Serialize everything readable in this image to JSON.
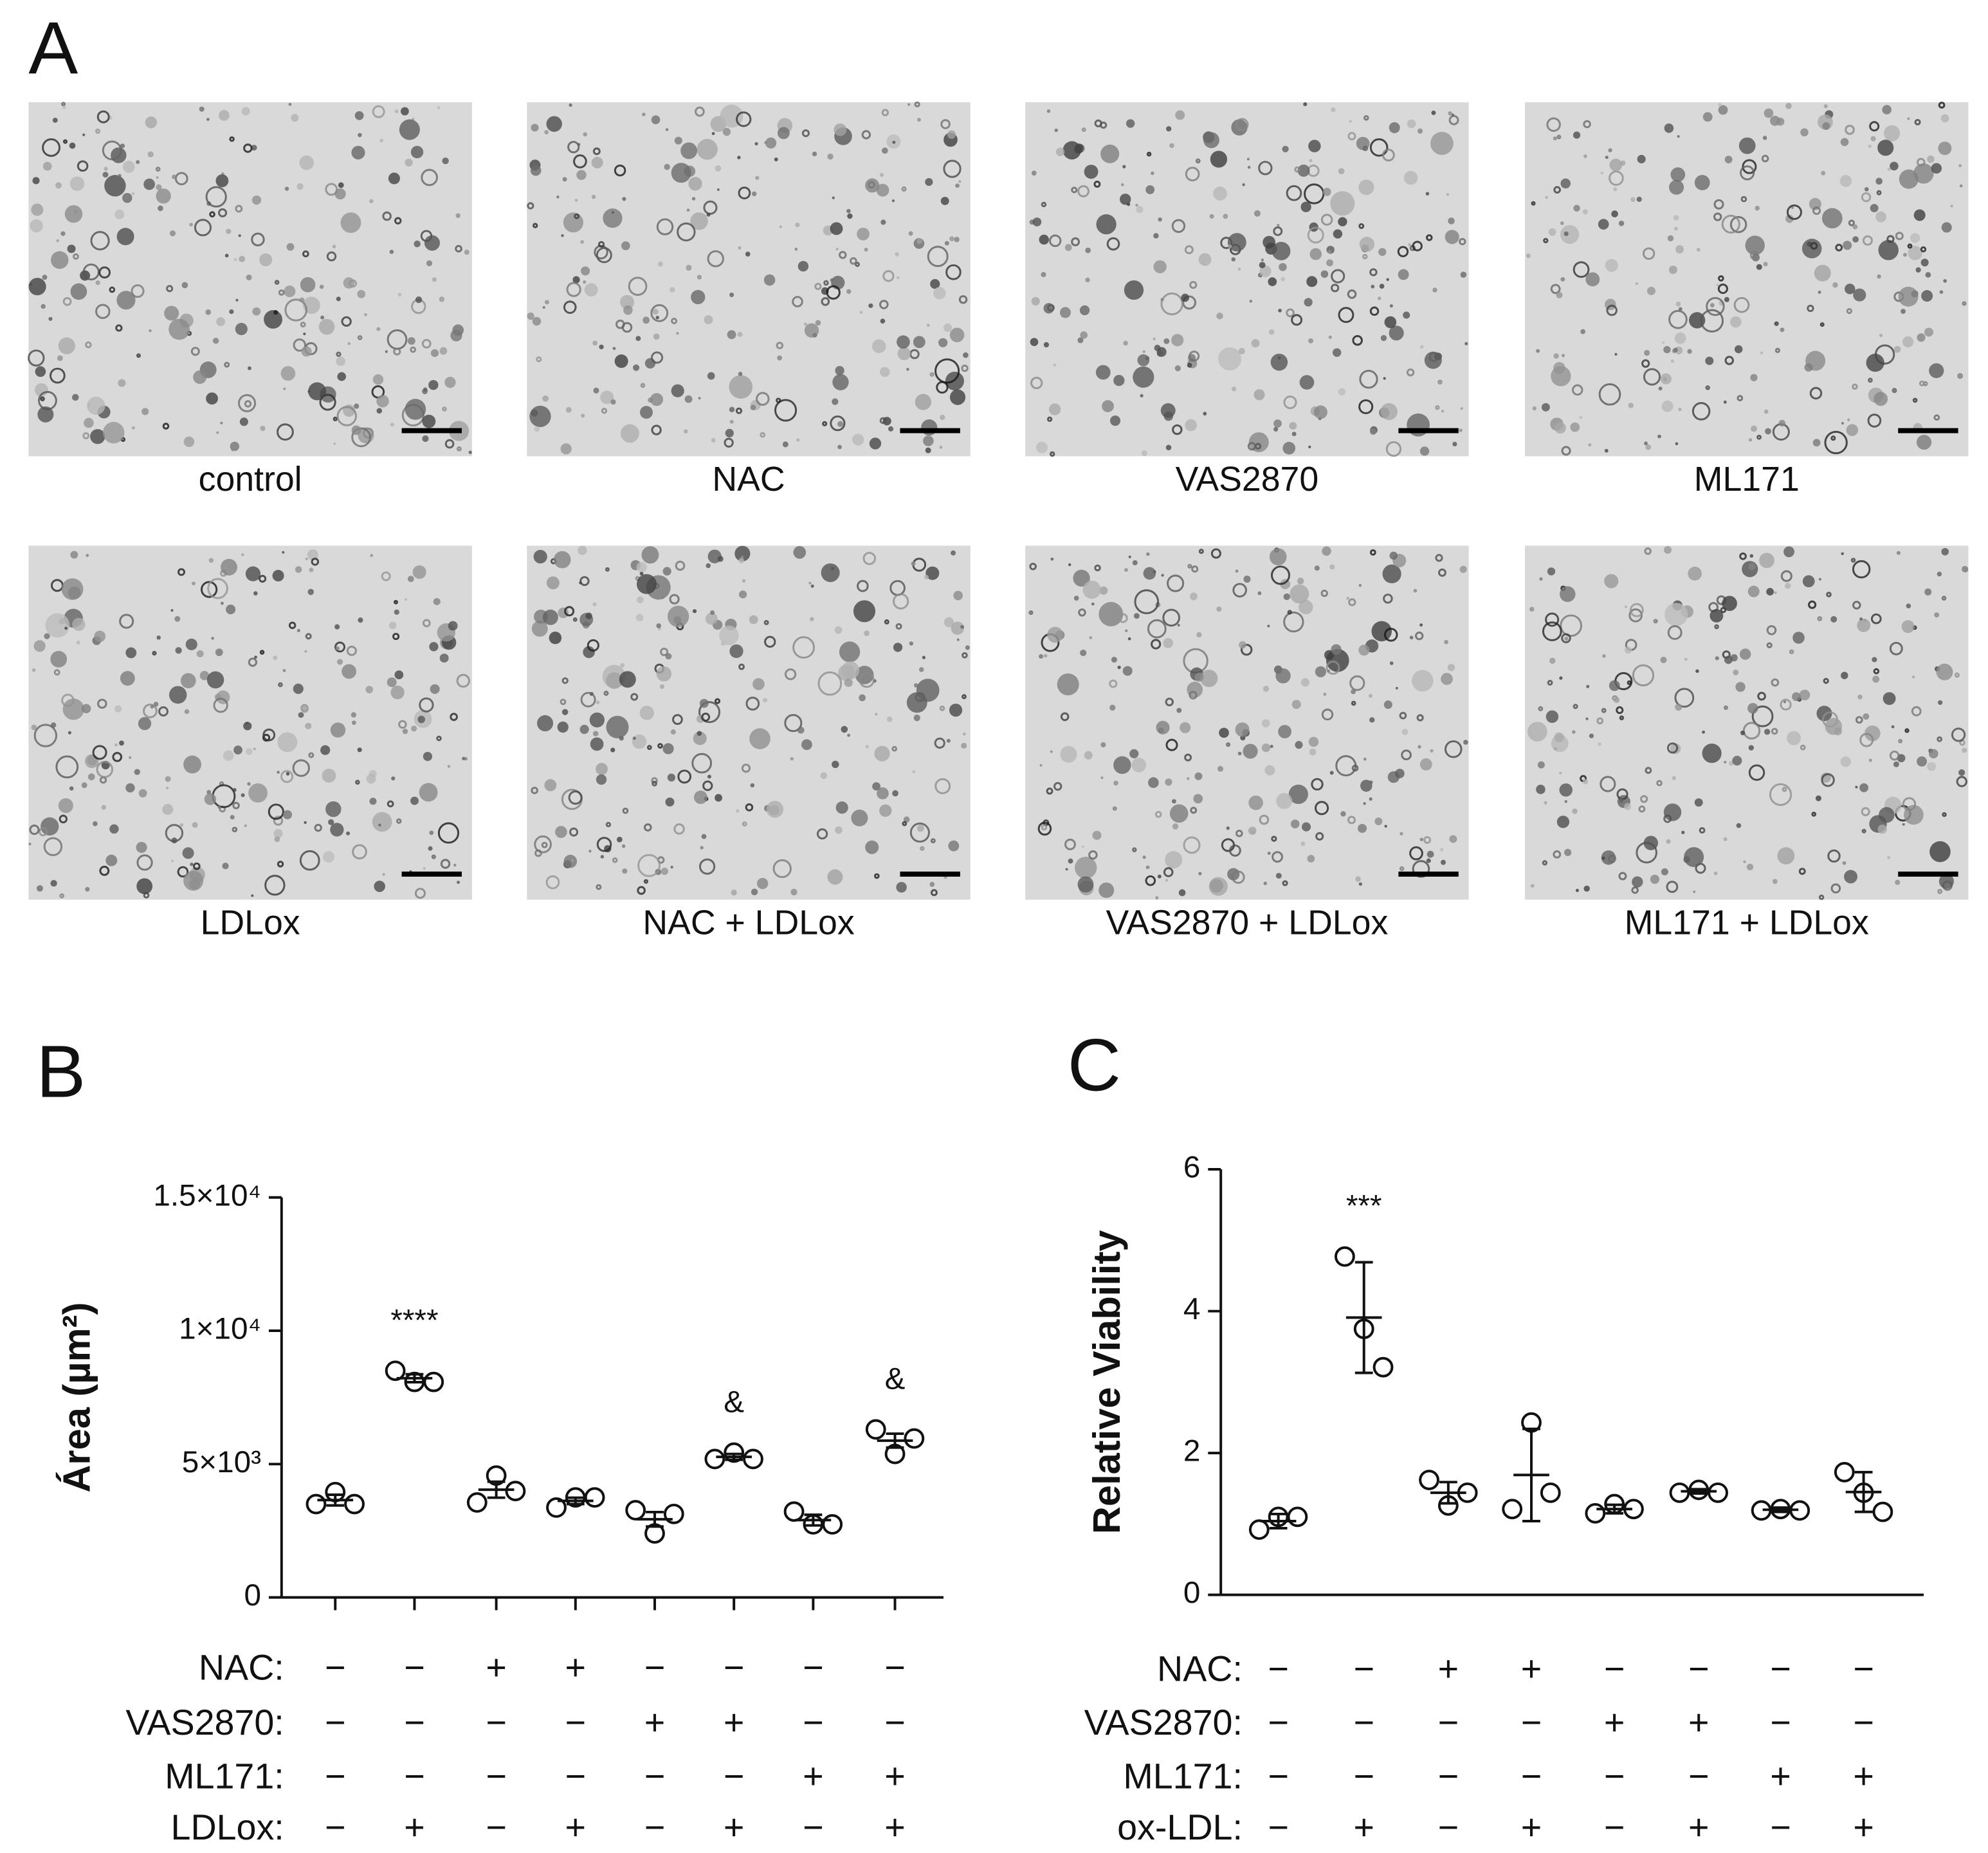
{
  "panel_a": {
    "label": "A",
    "images": [
      "control",
      "NAC",
      "VAS2870",
      "ML171",
      "LDLox",
      "NAC + LDLox",
      "VAS2870 + LDLox",
      "ML171 + LDLox"
    ]
  },
  "chart_data": [
    {
      "type": "scatter",
      "panel": "B",
      "y_label": "Área (µm²)",
      "ylim": [
        0,
        15000
      ],
      "yticks": [
        0,
        {
          "value": 5000,
          "label": "5×10³"
        },
        {
          "value": 10000,
          "label": "1×10⁴"
        },
        {
          "value": 15000,
          "label": "1.5×10⁴"
        }
      ],
      "color": "#111111",
      "groups": [
        [
          3500,
          3950,
          3500
        ],
        [
          8500,
          8080,
          8080
        ],
        [
          3560,
          4570,
          3990
        ],
        [
          3370,
          3750,
          3750
        ],
        [
          3270,
          2400,
          3130
        ],
        [
          5190,
          5430,
          5190
        ],
        [
          3220,
          2740,
          2740
        ],
        [
          6300,
          5380,
          5960
        ]
      ],
      "means": [
        3650,
        8220,
        4040,
        3620,
        2930,
        5270,
        2900,
        5880
      ],
      "errors": [
        200,
        150,
        300,
        120,
        270,
        110,
        200,
        260
      ],
      "annotations": [
        null,
        "****",
        null,
        null,
        null,
        "&",
        null,
        "&"
      ],
      "x_ticks": true,
      "treatments": [
        {
          "name": "NAC:",
          "signs": [
            "−",
            "−",
            "+",
            "+",
            "−",
            "−",
            "−",
            "−"
          ]
        },
        {
          "name": "VAS2870:",
          "signs": [
            "−",
            "−",
            "−",
            "−",
            "+",
            "+",
            "−",
            "−"
          ]
        },
        {
          "name": "ML171:",
          "signs": [
            "−",
            "−",
            "−",
            "−",
            "−",
            "−",
            "+",
            "+"
          ]
        },
        {
          "name": "LDLox:",
          "signs": [
            "−",
            "+",
            "−",
            "+",
            "−",
            "+",
            "−",
            "+"
          ]
        }
      ]
    },
    {
      "type": "scatter",
      "panel": "C",
      "y_label": "Relative Viability",
      "ylim": [
        0,
        6
      ],
      "yticks": [
        0,
        2,
        4,
        6
      ],
      "color": "#111111",
      "groups": [
        [
          0.92,
          1.1,
          1.1
        ],
        [
          4.77,
          3.75,
          3.21
        ],
        [
          1.62,
          1.26,
          1.44
        ],
        [
          1.21,
          2.43,
          1.44
        ],
        [
          1.15,
          1.28,
          1.21
        ],
        [
          1.44,
          1.48,
          1.44
        ],
        [
          1.19,
          1.21,
          1.19
        ],
        [
          1.73,
          1.44,
          1.17
        ]
      ],
      "means": [
        1.04,
        3.91,
        1.44,
        1.69,
        1.21,
        1.46,
        1.2,
        1.45
      ],
      "errors": [
        0.1,
        0.78,
        0.15,
        0.65,
        0.06,
        0.03,
        0.03,
        0.28
      ],
      "annotations": [
        null,
        "***",
        null,
        null,
        null,
        null,
        null,
        null
      ],
      "x_ticks": false,
      "treatments": [
        {
          "name": "NAC:",
          "signs": [
            "−",
            "−",
            "+",
            "+",
            "−",
            "−",
            "−",
            "−"
          ]
        },
        {
          "name": "VAS2870:",
          "signs": [
            "−",
            "−",
            "−",
            "−",
            "+",
            "+",
            "−",
            "−"
          ]
        },
        {
          "name": "ML171:",
          "signs": [
            "−",
            "−",
            "−",
            "−",
            "−",
            "−",
            "+",
            "+"
          ]
        },
        {
          "name": "ox-LDL:",
          "signs": [
            "−",
            "+",
            "−",
            "+",
            "−",
            "+",
            "−",
            "+"
          ]
        }
      ]
    }
  ]
}
